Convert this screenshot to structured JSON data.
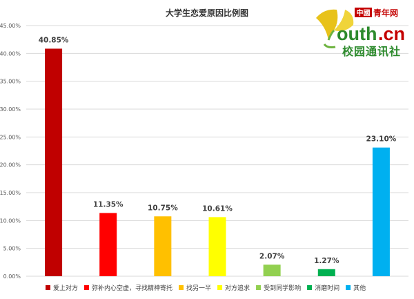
{
  "chart_data": {
    "type": "bar",
    "title": "大学生恋爱原因比例图",
    "categories": [
      "爱上对方",
      "弥补内心空虚，寻找精神寄托",
      "找另一半",
      "对方追求",
      "受到同学影响",
      "消磨时间",
      "其他"
    ],
    "values": [
      40.85,
      11.35,
      10.75,
      10.61,
      2.07,
      1.27,
      23.1
    ],
    "data_labels": [
      "40.85%",
      "11.35%",
      "10.75%",
      "10.61%",
      "2.07%",
      "1.27%",
      "23.10%"
    ],
    "colors": [
      "#c00000",
      "#ff0000",
      "#ffc000",
      "#ffff00",
      "#92d050",
      "#00b050",
      "#00b0f0"
    ],
    "ylim": [
      0,
      45
    ],
    "yticks": [
      "0.00%",
      "5.00%",
      "10.00%",
      "15.00%",
      "20.00%",
      "25.00%",
      "30.00%",
      "35.00%",
      "40.00%",
      "45.00%"
    ],
    "grid": true,
    "legend_position": "bottom",
    "xlabel": "",
    "ylabel": ""
  },
  "logo": {
    "china_mark": "中國",
    "brand_cn": "青年网",
    "brand_main": "outh",
    "brand_domain": ".cn",
    "subtitle": "校园通讯社",
    "colors": {
      "red": "#c40000",
      "green": "#2c8a2c",
      "leaf_yellow": "#e8c21a",
      "leaf_green": "#6db33f"
    }
  }
}
